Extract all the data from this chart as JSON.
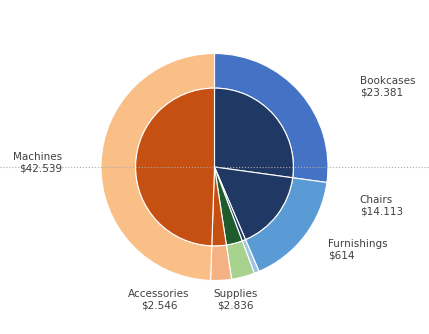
{
  "categories": [
    "Bookcases",
    "Chairs",
    "Furnishings",
    "Supplies",
    "Accessories",
    "Machines"
  ],
  "values": [
    23.381,
    14.113,
    0.614,
    2.836,
    2.546,
    42.539
  ],
  "value_labels": [
    "$23.381",
    "$14.113",
    "$614",
    "$2.836",
    "$2.546",
    "$42.539"
  ],
  "outer_colors": [
    "#4472C4",
    "#5B9BD5",
    "#9DC3E6",
    "#A9D18E",
    "#F4B183",
    "#F4B183"
  ],
  "inner_colors": [
    "#203864",
    "#203864",
    "#203864",
    "#1F6634",
    "#C55A11",
    "#C55A11"
  ],
  "background_color": "#FFFFFF",
  "dotted_line_color": "#AAAAAA",
  "label_color": "#404040",
  "label_fontsize": 7.5,
  "figsize": [
    4.29,
    3.34
  ],
  "dpi": 100
}
